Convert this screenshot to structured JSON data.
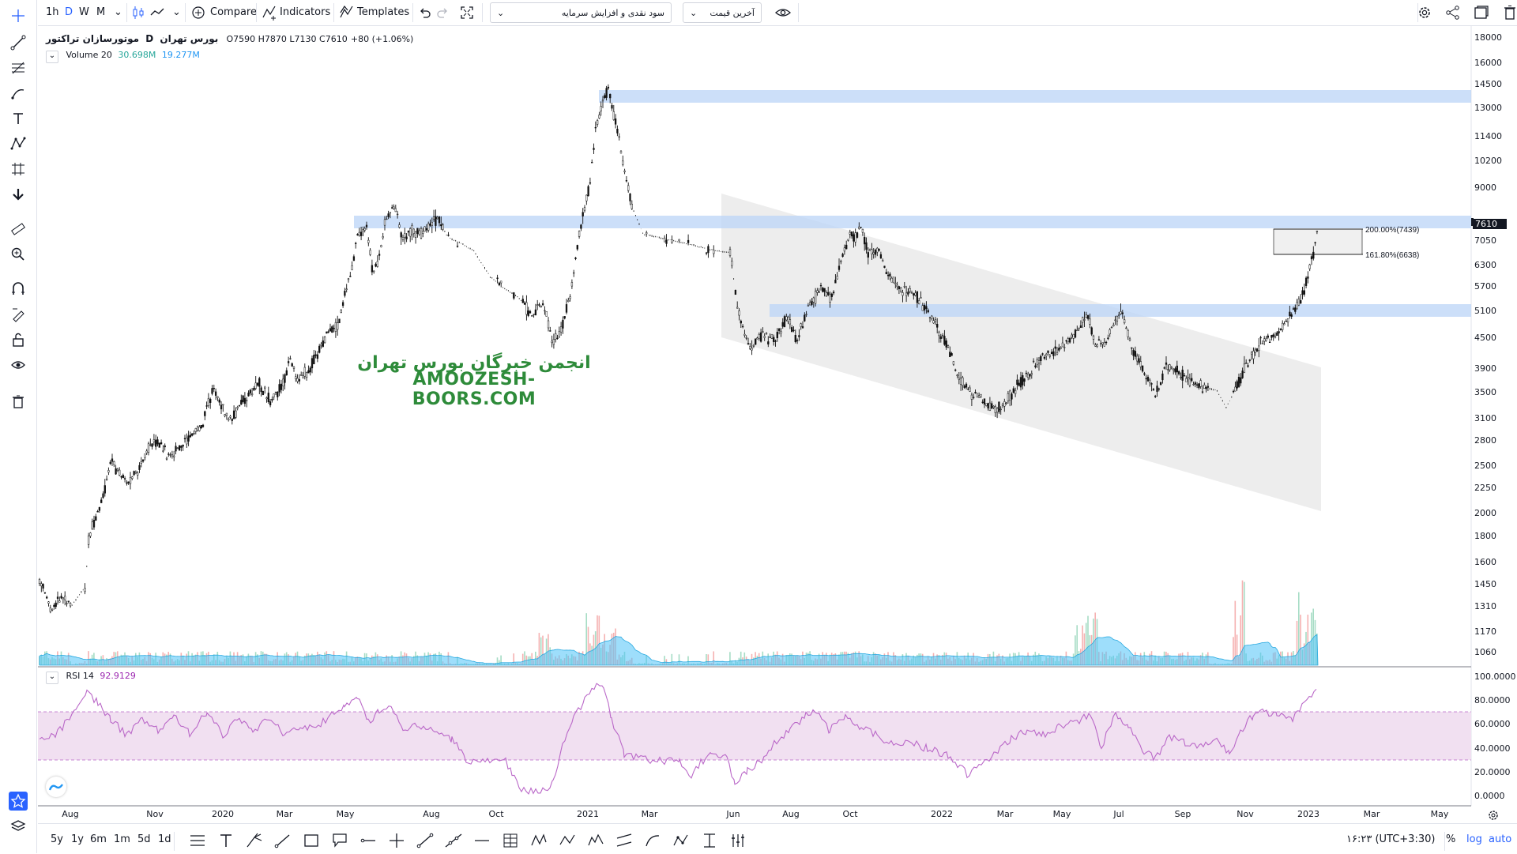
{
  "toolbar": {
    "intervals": [
      "1h",
      "D",
      "W",
      "M"
    ],
    "active_interval": "D",
    "compare_label": "Compare",
    "indicators_label": "Indicators",
    "templates_label": "Templates",
    "dropdown_study": "سود نقدی و افزایش سرمایه",
    "dropdown_price": "آخرین قیمت"
  },
  "legend": {
    "symbol": "موتورسازان تراکتور",
    "exchange": "بورس تهران",
    "interval": "D",
    "ohlc": "O7590 H7870 L7130 C7610",
    "change": "+80 (+1.06%)",
    "volume_label": "Volume 20",
    "volume_value": "30.698M",
    "volume_ma": "19.277M",
    "rsi_label": "RSI 14",
    "rsi_value": "92.9129"
  },
  "watermark": {
    "line1": "انجمن خبرگان بورس تهران",
    "line2": "AMOOZESH-BOORS.COM"
  },
  "fib_labels": [
    "200.00%(7439)",
    "161.80%(6638)"
  ],
  "price_axis": [
    "18000",
    "16000",
    "14500",
    "13000",
    "11400",
    "10200",
    "9000",
    "7610",
    "7050",
    "6300",
    "5700",
    "5100",
    "4500",
    "3900",
    "3500",
    "3100",
    "2800",
    "2500",
    "2250",
    "2000",
    "1800",
    "1600",
    "1450",
    "1310",
    "1170",
    "1060"
  ],
  "rsi_axis": [
    "100.0000",
    "80.0000",
    "60.0000",
    "40.0000",
    "20.0000",
    "0.0000"
  ],
  "time_axis": [
    "Aug",
    "Nov",
    "2020",
    "Mar",
    "May",
    "Aug",
    "Oct",
    "2021",
    "Mar",
    "Jun",
    "Aug",
    "Oct",
    "2022",
    "Mar",
    "May",
    "Jul",
    "Sep",
    "Nov",
    "2023",
    "Mar",
    "May"
  ],
  "bottom": {
    "ranges": [
      "5y",
      "1y",
      "6m",
      "1m",
      "5d",
      "1d"
    ],
    "time": "۱۶:۲۳ (UTC+3:30)",
    "percent": "%",
    "log": "log",
    "auto": "auto"
  },
  "colors": {
    "accent": "#2962ff",
    "rsi": "#9c27b0",
    "rsi_band": "#f1e0f1",
    "zone": "#bbd4f7",
    "channel": "#d6d6d6",
    "vol_up": "#a6dcc5",
    "vol_down": "#f5b1b1",
    "vol_ma": "#4fc3f7"
  }
}
